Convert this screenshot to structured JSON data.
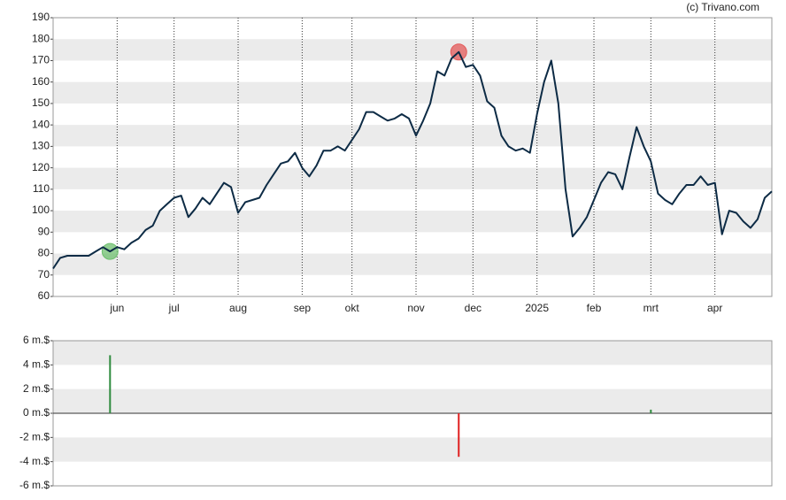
{
  "chart_data": [
    {
      "type": "line",
      "credit": "(c) Trivano.com",
      "categories": [
        null,
        null,
        null,
        null,
        null,
        null,
        null,
        null,
        null,
        "jun",
        null,
        null,
        null,
        null,
        null,
        null,
        null,
        "jul",
        null,
        null,
        null,
        null,
        null,
        null,
        null,
        null,
        "aug",
        null,
        null,
        null,
        null,
        null,
        null,
        null,
        null,
        "sep",
        null,
        null,
        null,
        null,
        null,
        null,
        "okt",
        null,
        null,
        null,
        null,
        null,
        null,
        null,
        null,
        "nov",
        null,
        null,
        null,
        null,
        null,
        null,
        null,
        "dec",
        null,
        null,
        null,
        null,
        null,
        null,
        null,
        null,
        "2025",
        null,
        null,
        null,
        null,
        null,
        null,
        null,
        "feb",
        null,
        null,
        null,
        null,
        null,
        null,
        null,
        "mrt",
        null,
        null,
        null,
        null,
        null,
        null,
        null,
        null,
        "apr",
        null,
        null,
        null,
        null,
        null,
        null,
        null,
        null
      ],
      "series": [
        {
          "color": "#0d2b45",
          "values": [
            73,
            78,
            79,
            79,
            79,
            79,
            81,
            83,
            81,
            83,
            82,
            85,
            87,
            91,
            93,
            100,
            103,
            106,
            107,
            97,
            101,
            106,
            103,
            108,
            113,
            111,
            99,
            104,
            105,
            106,
            112,
            117,
            122,
            123,
            127,
            120,
            116,
            121,
            128,
            128,
            130,
            128,
            133,
            138,
            146,
            146,
            144,
            142,
            143,
            145,
            143,
            135,
            142,
            150,
            165,
            163,
            171,
            174,
            167,
            168,
            163,
            151,
            148,
            135,
            130,
            128,
            129,
            127,
            145,
            160,
            170,
            150,
            110,
            88,
            92,
            97,
            105,
            113,
            118,
            117,
            110,
            125,
            139,
            130,
            123,
            108,
            105,
            103,
            108,
            112,
            112,
            116,
            112,
            113,
            89,
            100,
            99,
            95,
            92,
            96,
            106,
            109
          ],
          "markers": [
            {
              "index": 8,
              "color": "#6dbf6d"
            },
            {
              "index": 57,
              "color": "#e35a5a"
            }
          ]
        }
      ],
      "ylim": [
        60,
        190
      ],
      "yticks": [
        60,
        70,
        80,
        90,
        100,
        110,
        120,
        130,
        140,
        150,
        160,
        170,
        180,
        190
      ],
      "grid": true
    },
    {
      "type": "bar",
      "x": [
        8,
        57,
        84
      ],
      "xlim": [
        0,
        101
      ],
      "values": [
        4.8,
        -3.6,
        0.3
      ],
      "colors": [
        "#2e8b3e",
        "#e02020",
        "#2e8b3e"
      ],
      "ylim": [
        -6,
        6
      ],
      "yticks": [
        {
          "value": -6,
          "label": "-6 m.$"
        },
        {
          "value": -4,
          "label": "-4 m.$"
        },
        {
          "value": -2,
          "label": "-2 m.$"
        },
        {
          "value": 0,
          "label": "0 m.$"
        },
        {
          "value": 2,
          "label": "2 m.$"
        },
        {
          "value": 4,
          "label": "4 m.$"
        },
        {
          "value": 6,
          "label": "6 m.$"
        }
      ],
      "grid": true
    }
  ]
}
